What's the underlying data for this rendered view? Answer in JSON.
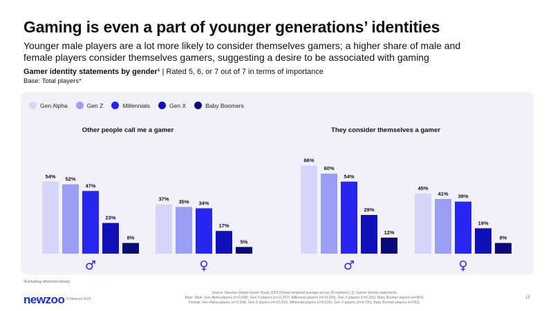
{
  "title": "Gaming is even a part of younger generations’ identities",
  "subtitle": "Younger male players are a lot more likely to consider themselves gamers; a higher share of male and female players consider themselves gamers, suggesting a desire to be associated with gaming",
  "chart_heading_bold": "Gamer identity statements by gender¹",
  "chart_heading_rest": " | Rated 5, 6, or 7 out of 7 in terms of importance",
  "base": "Base: Total players*",
  "footnote": "¹Excluding other/non-binary",
  "logo": "newzoo",
  "copyright": "© Newzoo 2025",
  "source_lines": [
    "Source: Newzoo Global Gamer Study 2025 (Global weighted average across 36 markets) | Q: Gamer identity statements",
    "Base: Male: Gen Alpha players (n=2,595), Gen Z players (n=12,257), Millennial players (n=10,339), Gen X players (n=5,281), Baby Boomer players (n=964)",
    "Female: Gen Alpha players (n=2,304), Gen Z players (n=10,350), Millennial players (n=8,526), Gen X players (n=4,705), Baby Boomer players (n=953)"
  ],
  "page_number": "15",
  "chart_data": {
    "type": "bar",
    "series_names": [
      "Gen Alpha",
      "Gen Z",
      "Millennials",
      "Gen X",
      "Baby Boomers"
    ],
    "colors": [
      "#d6d6fa",
      "#9a9ef4",
      "#2626f0",
      "#0f10b8",
      "#0a0a78"
    ],
    "panels": [
      {
        "title": "Other people call me a gamer",
        "groups": [
          {
            "label": "♂",
            "values": [
              54,
              52,
              47,
              23,
              8
            ]
          },
          {
            "label": "♀",
            "values": [
              37,
              35,
              34,
              17,
              5
            ]
          }
        ]
      },
      {
        "title": "They consider themselves a gamer",
        "groups": [
          {
            "label": "♂",
            "values": [
              66,
              60,
              54,
              29,
              12
            ]
          },
          {
            "label": "♀",
            "values": [
              45,
              41,
              39,
              19,
              8
            ]
          }
        ]
      }
    ],
    "value_suffix": "%",
    "ylim": [
      0,
      70
    ],
    "legend_position": "top-left",
    "grid": false
  }
}
